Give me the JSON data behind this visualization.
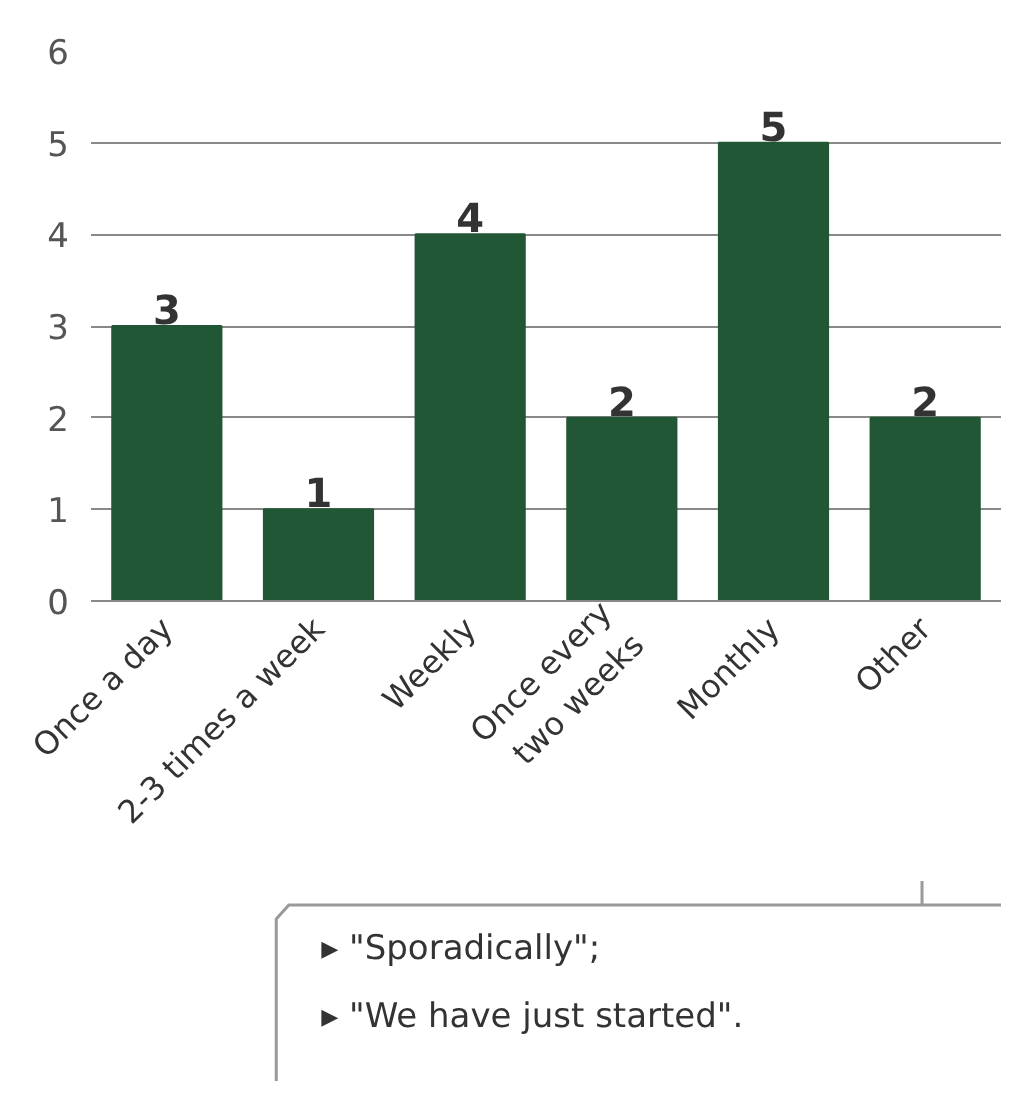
{
  "chart_data": {
    "type": "bar",
    "categories": [
      "Once a day",
      "2-3 times a week",
      "Weekly",
      "Once every\ntwo weeks",
      "Monthly",
      "Other"
    ],
    "values": [
      3,
      1,
      4,
      2,
      5,
      2
    ],
    "color": "#225735",
    "ylim": [
      0,
      6
    ],
    "yticks": [
      0,
      1,
      2,
      3,
      4,
      5,
      6
    ],
    "grid": "y",
    "data_labels": true,
    "annotations": [
      "▸  \"Sporadically\";\n▸  \"We have just started\"."
    ]
  }
}
